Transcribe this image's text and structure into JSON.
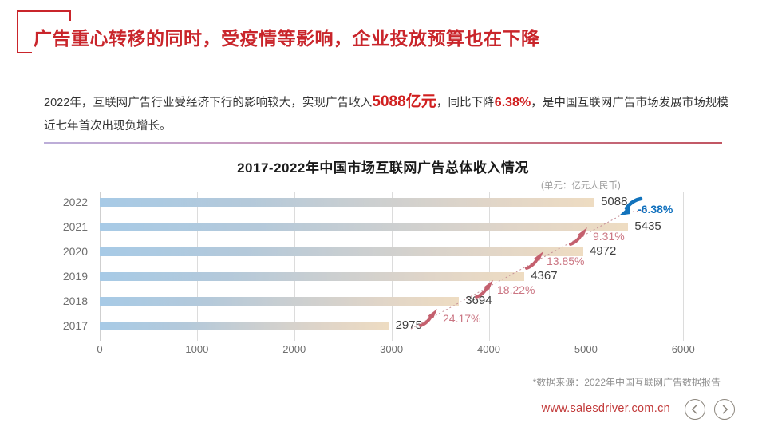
{
  "header": {
    "title": "广告重心转移的同时，受疫情等影响，企业投放预算也在下降"
  },
  "intro": {
    "part1": "2022年，互联网广告行业受经济下行的影响较大，实现广告收入",
    "highlight_revenue": "5088亿元",
    "part2": "，同比下降",
    "highlight_decline": "6.38%",
    "part3": "，是中国互联网广告市场发展市场规模近七年首次出现负增长。"
  },
  "chart": {
    "title": "2017-2022年中国市场互联网广告总体收入情况",
    "unit": "(单元：亿元人民币)"
  },
  "chart_data": {
    "type": "bar",
    "orientation": "horizontal",
    "title": "2017-2022年中国市场互联网广告总体收入情况",
    "unit": "亿元人民币",
    "categories": [
      "2022",
      "2021",
      "2020",
      "2019",
      "2018",
      "2017"
    ],
    "values": [
      5088,
      5435,
      4972,
      4367,
      3694,
      2975
    ],
    "x_ticks": [
      "0",
      "1000",
      "2000",
      "3000",
      "4000",
      "5000",
      "6000"
    ],
    "axis_max": 6400,
    "grid": "vertical-only",
    "growth_annotations": [
      {
        "label": "-6.38%",
        "between": "2021-2022",
        "color": "#0e6fbd",
        "direction": "down"
      },
      {
        "label": "9.31%",
        "between": "2020-2021",
        "color": "#cb7683",
        "direction": "up"
      },
      {
        "label": "13.85%",
        "between": "2019-2020",
        "color": "#cb7683",
        "direction": "up"
      },
      {
        "label": "18.22%",
        "between": "2018-2019",
        "color": "#cb7683",
        "direction": "up"
      },
      {
        "label": "24.17%",
        "between": "2017-2018",
        "color": "#cb7683",
        "direction": "up"
      }
    ],
    "bar_gradient": [
      "#a7cae6",
      "#cccfd0",
      "#eedcc2"
    ]
  },
  "footer": {
    "source": "*数据来源：2022年中国互联网广告数据报告",
    "site": "www.salesdriver.com.cn"
  },
  "colors": {
    "accent_red": "#c9252b",
    "highlight_red": "#d01f1f",
    "annotation_rose": "#cb7683",
    "annotation_blue": "#0e6fbd",
    "divider_left": "#bcaed9",
    "divider_right": "#c25562"
  }
}
